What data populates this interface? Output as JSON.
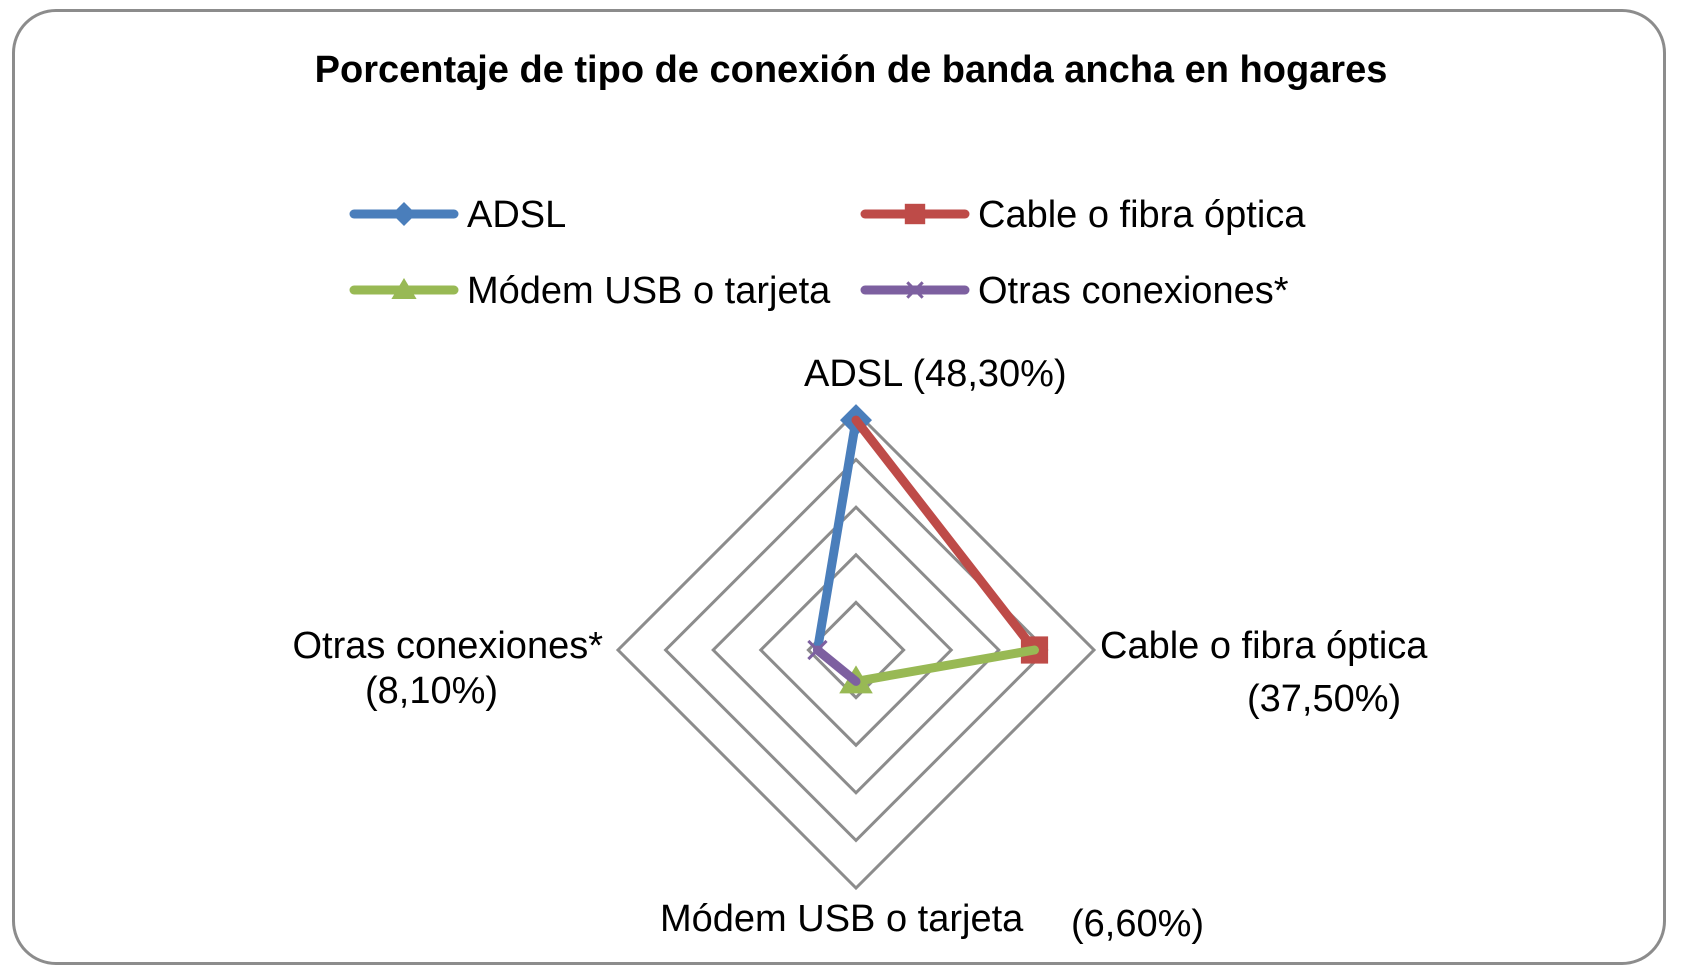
{
  "chart_data": {
    "type": "radar",
    "title": "Porcentaje de tipo de conexión de banda ancha en hogares",
    "axes": [
      {
        "name": "ADSL",
        "value_label": "(48,30%)"
      },
      {
        "name": "Cable o fibra óptica",
        "value_label": "(37,50%)"
      },
      {
        "name": "Módem USB o tarjeta",
        "value_label": "(6,60%)"
      },
      {
        "name": "Otras conexiones*",
        "value_label": "(8,10%)"
      }
    ],
    "rlim": [
      0,
      50
    ],
    "ticks": [
      10,
      20,
      30,
      40,
      50
    ],
    "grid": true,
    "legend_position": "top",
    "series_path": [
      {
        "name": "ADSL",
        "color": "#4a7ebb",
        "marker": "diamond",
        "from_axis": 3,
        "to_axis": 0,
        "values": [
          8.1,
          48.3
        ]
      },
      {
        "name": "Cable o fibra óptica",
        "color": "#be4b48",
        "marker": "square",
        "from_axis": 0,
        "to_axis": 1,
        "values": [
          48.3,
          37.5
        ]
      },
      {
        "name": "Módem USB o tarjeta",
        "color": "#98b954",
        "marker": "triangle",
        "from_axis": 1,
        "to_axis": 2,
        "values": [
          37.5,
          6.6
        ]
      },
      {
        "name": "Otras conexiones*",
        "color": "#7d60a0",
        "marker": "x",
        "from_axis": 2,
        "to_axis": 3,
        "values": [
          6.6,
          8.1
        ]
      }
    ]
  }
}
